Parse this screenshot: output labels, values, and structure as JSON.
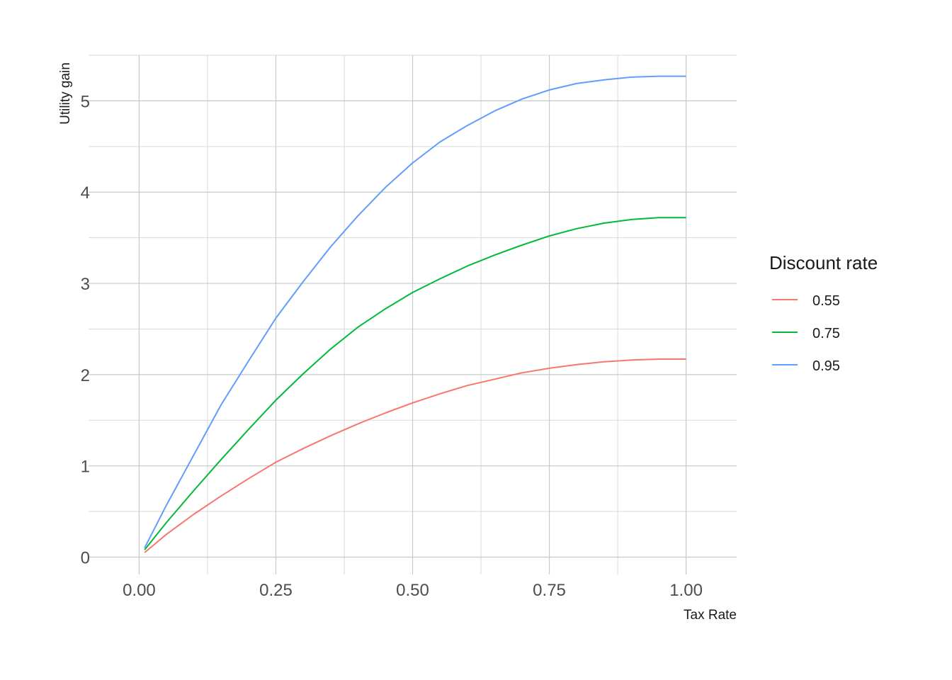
{
  "chart_data": {
    "type": "line",
    "xlabel": "Tax Rate",
    "ylabel": "Utility gain",
    "xlim": [
      -0.0925,
      1.0925
    ],
    "ylim": [
      -0.19,
      5.5
    ],
    "x_ticks": [
      "0.00",
      "0.25",
      "0.50",
      "0.75",
      "1.00"
    ],
    "x_tick_values": [
      0,
      0.25,
      0.5,
      0.75,
      1.0
    ],
    "y_ticks": [
      "0",
      "1",
      "2",
      "3",
      "4",
      "5"
    ],
    "y_tick_values": [
      0,
      1,
      2,
      3,
      4,
      5
    ],
    "grid": true,
    "legend": {
      "title": "Discount rate",
      "position": "right"
    },
    "x": [
      0.01,
      0.05,
      0.1,
      0.15,
      0.2,
      0.25,
      0.3,
      0.35,
      0.4,
      0.45,
      0.5,
      0.55,
      0.6,
      0.65,
      0.7,
      0.75,
      0.8,
      0.85,
      0.9,
      0.95,
      1.0
    ],
    "series": [
      {
        "name": "0.55",
        "color": "#F8766D",
        "values": [
          0.05,
          0.25,
          0.47,
          0.67,
          0.86,
          1.04,
          1.19,
          1.33,
          1.46,
          1.58,
          1.69,
          1.79,
          1.88,
          1.95,
          2.02,
          2.07,
          2.11,
          2.14,
          2.16,
          2.17,
          2.17
        ]
      },
      {
        "name": "0.75",
        "color": "#00BA38",
        "values": [
          0.08,
          0.38,
          0.73,
          1.07,
          1.4,
          1.72,
          2.01,
          2.28,
          2.52,
          2.72,
          2.9,
          3.05,
          3.19,
          3.31,
          3.42,
          3.52,
          3.6,
          3.66,
          3.7,
          3.72,
          3.72
        ]
      },
      {
        "name": "0.95",
        "color": "#619CFF",
        "values": [
          0.1,
          0.57,
          1.12,
          1.67,
          2.15,
          2.62,
          3.02,
          3.4,
          3.74,
          4.05,
          4.32,
          4.55,
          4.73,
          4.89,
          5.02,
          5.12,
          5.19,
          5.23,
          5.26,
          5.27,
          5.27
        ]
      }
    ]
  }
}
